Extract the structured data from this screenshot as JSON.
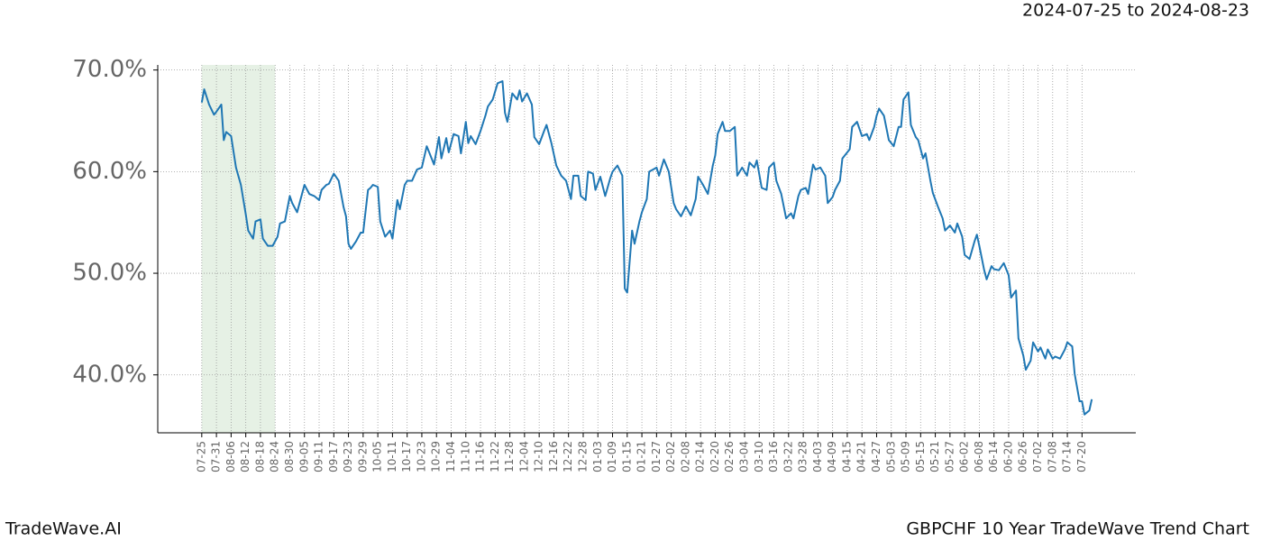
{
  "chart_data": {
    "type": "line",
    "title": "GBPCHF 10 Year TradeWave Trend Chart",
    "date_range": "2024-07-25 to 2024-08-23",
    "watermark": "TradeWave.AI",
    "color": "#1f77b4",
    "shade_color": "#d5e8d4",
    "shaded_range": [
      0,
      30
    ],
    "grid": true,
    "xlim": [
      -18,
      382
    ],
    "ylim": [
      34.3,
      70.5
    ],
    "yticks": [
      {
        "value": 40,
        "label": "40.0%"
      },
      {
        "value": 50,
        "label": "50.0%"
      },
      {
        "value": 60,
        "label": "60.0%"
      },
      {
        "value": 70,
        "label": "70.0%"
      }
    ],
    "xticks": [
      {
        "value": 0,
        "label": "07-25"
      },
      {
        "value": 6,
        "label": "07-31"
      },
      {
        "value": 12,
        "label": "08-06"
      },
      {
        "value": 18,
        "label": "08-12"
      },
      {
        "value": 24,
        "label": "08-18"
      },
      {
        "value": 30,
        "label": "08-24"
      },
      {
        "value": 36,
        "label": "08-30"
      },
      {
        "value": 42,
        "label": "09-05"
      },
      {
        "value": 48,
        "label": "09-11"
      },
      {
        "value": 54,
        "label": "09-17"
      },
      {
        "value": 60,
        "label": "09-23"
      },
      {
        "value": 66,
        "label": "09-29"
      },
      {
        "value": 72,
        "label": "10-05"
      },
      {
        "value": 78,
        "label": "10-11"
      },
      {
        "value": 84,
        "label": "10-17"
      },
      {
        "value": 90,
        "label": "10-23"
      },
      {
        "value": 96,
        "label": "10-29"
      },
      {
        "value": 102,
        "label": "11-04"
      },
      {
        "value": 108,
        "label": "11-10"
      },
      {
        "value": 114,
        "label": "11-16"
      },
      {
        "value": 120,
        "label": "11-22"
      },
      {
        "value": 126,
        "label": "11-28"
      },
      {
        "value": 132,
        "label": "12-04"
      },
      {
        "value": 138,
        "label": "12-10"
      },
      {
        "value": 144,
        "label": "12-16"
      },
      {
        "value": 150,
        "label": "12-22"
      },
      {
        "value": 156,
        "label": "12-28"
      },
      {
        "value": 162,
        "label": "01-03"
      },
      {
        "value": 168,
        "label": "01-09"
      },
      {
        "value": 174,
        "label": "01-15"
      },
      {
        "value": 180,
        "label": "01-21"
      },
      {
        "value": 186,
        "label": "01-27"
      },
      {
        "value": 192,
        "label": "02-02"
      },
      {
        "value": 198,
        "label": "02-08"
      },
      {
        "value": 204,
        "label": "02-14"
      },
      {
        "value": 210,
        "label": "02-20"
      },
      {
        "value": 216,
        "label": "02-26"
      },
      {
        "value": 222,
        "label": "03-04"
      },
      {
        "value": 228,
        "label": "03-10"
      },
      {
        "value": 234,
        "label": "03-16"
      },
      {
        "value": 240,
        "label": "03-22"
      },
      {
        "value": 246,
        "label": "03-28"
      },
      {
        "value": 252,
        "label": "04-03"
      },
      {
        "value": 258,
        "label": "04-09"
      },
      {
        "value": 264,
        "label": "04-15"
      },
      {
        "value": 270,
        "label": "04-21"
      },
      {
        "value": 276,
        "label": "04-27"
      },
      {
        "value": 282,
        "label": "05-03"
      },
      {
        "value": 288,
        "label": "05-09"
      },
      {
        "value": 294,
        "label": "05-15"
      },
      {
        "value": 300,
        "label": "05-21"
      },
      {
        "value": 306,
        "label": "05-27"
      },
      {
        "value": 312,
        "label": "06-02"
      },
      {
        "value": 318,
        "label": "06-08"
      },
      {
        "value": 324,
        "label": "06-14"
      },
      {
        "value": 330,
        "label": "06-20"
      },
      {
        "value": 336,
        "label": "06-26"
      },
      {
        "value": 342,
        "label": "07-02"
      },
      {
        "value": 348,
        "label": "07-08"
      },
      {
        "value": 354,
        "label": "07-14"
      },
      {
        "value": 360,
        "label": "07-20"
      }
    ],
    "x": [
      0,
      1,
      3,
      5,
      6,
      8,
      9,
      10,
      12,
      14,
      16,
      18,
      19,
      21,
      22,
      24,
      25,
      27,
      29,
      31,
      32,
      34,
      36,
      37,
      39,
      42,
      44,
      46,
      48,
      49,
      51,
      52,
      54,
      56,
      58,
      59,
      60,
      61,
      63,
      65,
      66,
      68,
      69,
      70,
      72,
      73,
      75,
      77,
      78,
      80,
      81,
      83,
      84,
      86,
      88,
      90,
      92,
      93,
      95,
      97,
      98,
      100,
      101,
      103,
      105,
      106,
      108,
      109,
      110,
      112,
      114,
      116,
      117,
      119,
      121,
      123,
      124,
      125,
      127,
      129,
      130,
      131,
      133,
      135,
      136,
      138,
      140,
      141,
      143,
      145,
      147,
      149,
      151,
      152,
      154,
      155,
      157,
      158,
      160,
      161,
      163,
      165,
      167,
      168,
      170,
      172,
      173,
      174,
      176,
      177,
      179,
      180,
      182,
      183,
      186,
      187,
      189,
      191,
      193,
      194,
      196,
      198,
      200,
      202,
      203,
      205,
      207,
      209,
      210,
      211,
      213,
      214,
      216,
      218,
      219,
      221,
      223,
      224,
      226,
      227,
      229,
      231,
      232,
      234,
      235,
      237,
      239,
      241,
      242,
      244,
      245,
      247,
      248,
      250,
      251,
      253,
      255,
      256,
      258,
      259,
      261,
      262,
      265,
      266,
      268,
      270,
      272,
      273,
      275,
      276,
      277,
      279,
      281,
      283,
      285,
      286,
      287,
      289,
      290,
      292,
      293,
      295,
      296,
      298,
      299,
      301,
      303,
      304,
      306,
      308,
      309,
      311,
      312,
      314,
      316,
      317,
      318,
      320,
      321,
      323,
      324,
      326,
      328,
      330,
      331,
      333,
      334,
      336,
      337,
      339,
      340,
      342,
      343,
      345,
      346,
      348,
      349,
      351,
      353,
      354,
      356,
      357,
      359,
      360,
      361,
      363,
      364
    ],
    "values": [
      66.8,
      68.1,
      66.6,
      65.6,
      65.9,
      66.6,
      63.1,
      63.9,
      63.5,
      60.4,
      58.7,
      55.8,
      54.2,
      53.4,
      55.1,
      55.3,
      53.4,
      52.7,
      52.7,
      53.6,
      54.9,
      55.1,
      57.6,
      56.9,
      56.0,
      58.7,
      57.8,
      57.6,
      57.2,
      58.2,
      58.7,
      58.8,
      59.8,
      59.1,
      56.5,
      55.6,
      52.9,
      52.4,
      53.1,
      54.0,
      54.0,
      58.2,
      58.4,
      58.7,
      58.5,
      55.1,
      53.6,
      54.2,
      53.4,
      57.2,
      56.3,
      58.7,
      59.1,
      59.1,
      60.2,
      60.4,
      62.5,
      61.9,
      60.7,
      63.4,
      61.3,
      63.3,
      61.9,
      63.7,
      63.5,
      61.8,
      64.9,
      62.8,
      63.5,
      62.7,
      64.0,
      65.5,
      66.4,
      67.1,
      68.7,
      68.9,
      65.8,
      64.9,
      67.7,
      67.1,
      68.0,
      66.9,
      67.7,
      66.6,
      63.4,
      62.7,
      64.0,
      64.6,
      62.8,
      60.6,
      59.6,
      59.1,
      57.3,
      59.6,
      59.6,
      57.6,
      57.2,
      60.0,
      59.8,
      58.2,
      59.5,
      57.6,
      59.3,
      60.0,
      60.6,
      59.6,
      48.5,
      48.1,
      54.2,
      52.9,
      55.1,
      56.0,
      57.3,
      60.0,
      60.4,
      59.6,
      61.2,
      60.0,
      56.9,
      56.3,
      55.6,
      56.6,
      55.7,
      57.3,
      59.5,
      58.7,
      57.8,
      60.6,
      61.6,
      63.7,
      64.9,
      64.0,
      64.0,
      64.4,
      59.6,
      60.4,
      59.6,
      60.9,
      60.4,
      61.1,
      58.4,
      58.2,
      60.4,
      60.9,
      59.1,
      57.8,
      55.4,
      55.9,
      55.4,
      57.6,
      58.2,
      58.4,
      57.8,
      60.7,
      60.2,
      60.4,
      59.6,
      56.9,
      57.5,
      58.2,
      59.1,
      61.3,
      62.2,
      64.4,
      64.9,
      63.5,
      63.7,
      63.1,
      64.4,
      65.5,
      66.2,
      65.5,
      63.1,
      62.5,
      64.4,
      64.4,
      67.1,
      67.8,
      64.6,
      63.4,
      63.1,
      61.3,
      61.8,
      59.1,
      57.9,
      56.6,
      55.4,
      54.2,
      54.7,
      54.0,
      54.9,
      53.6,
      51.8,
      51.4,
      53.1,
      53.8,
      52.7,
      50.3,
      49.4,
      50.7,
      50.4,
      50.3,
      51.0,
      49.8,
      47.6,
      48.3,
      43.6,
      41.9,
      40.5,
      41.4,
      43.2,
      42.3,
      42.7,
      41.6,
      42.5,
      41.6,
      41.8,
      41.6,
      42.5,
      43.2,
      42.8,
      40.1,
      37.4,
      37.4,
      36.1,
      36.5,
      37.6
    ]
  }
}
